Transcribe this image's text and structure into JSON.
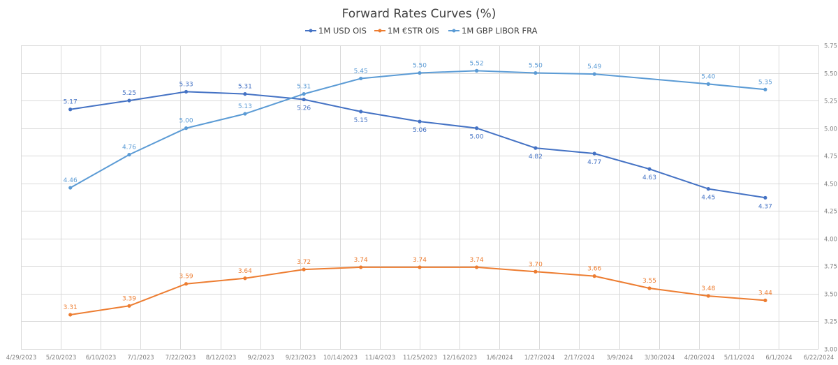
{
  "chart_data": {
    "type": "line",
    "title": "Forward Rates Curves (%)",
    "xlabel": "",
    "ylabel": "",
    "ylim": [
      3.0,
      5.75
    ],
    "y_ticks": [
      "3.00",
      "3.25",
      "3.50",
      "3.75",
      "4.00",
      "4.25",
      "4.50",
      "4.75",
      "5.00",
      "5.25",
      "5.50",
      "5.75"
    ],
    "y_axis_position": "right",
    "x_ticks": [
      "4/29/2023",
      "5/20/2023",
      "6/10/2023",
      "7/1/2023",
      "7/22/2023",
      "8/12/2023",
      "9/2/2023",
      "9/23/2023",
      "10/14/2023",
      "11/4/2023",
      "11/25/2023",
      "12/16/2023",
      "1/6/2024",
      "1/27/2024",
      "2/17/2024",
      "3/9/2024",
      "3/30/2024",
      "4/20/2024",
      "5/11/2024",
      "6/1/2024",
      "6/22/2024"
    ],
    "x": [
      "5/25/2023",
      "6/25/2023",
      "7/25/2023",
      "8/25/2023",
      "9/25/2023",
      "10/25/2023",
      "11/25/2023",
      "12/25/2023",
      "1/25/2024",
      "2/25/2024",
      "3/25/2024",
      "4/25/2024",
      "5/25/2024"
    ],
    "grid": true,
    "legend_position": "top",
    "series": [
      {
        "name": "1M USD OIS",
        "color": "#4472c4",
        "values": [
          5.17,
          5.25,
          5.33,
          5.31,
          5.26,
          5.15,
          5.06,
          5.0,
          4.82,
          4.77,
          4.63,
          4.45,
          4.37
        ],
        "labels": [
          "5.17",
          "5.25",
          "5.33",
          "5.31",
          "5.26",
          "5.15",
          "5.06",
          "5.00",
          "4.82",
          "4.77",
          "4.63",
          "4.45",
          "4.37"
        ],
        "label_side": [
          "above",
          "above",
          "above",
          "above",
          "below",
          "below",
          "below",
          "below",
          "below",
          "below",
          "below",
          "below",
          "below"
        ]
      },
      {
        "name": "1M €STR OIS",
        "color": "#ed7d31",
        "values": [
          3.31,
          3.39,
          3.59,
          3.64,
          3.72,
          3.74,
          3.74,
          3.74,
          3.7,
          3.66,
          3.55,
          3.48,
          3.44
        ],
        "labels": [
          "3.31",
          "3.39",
          "3.59",
          "3.64",
          "3.72",
          "3.74",
          "3.74",
          "3.74",
          "3.70",
          "3.66",
          "3.55",
          "3.48",
          "3.44"
        ],
        "label_side": [
          "above",
          "above",
          "above",
          "above",
          "above",
          "above",
          "above",
          "above",
          "above",
          "above",
          "above",
          "above",
          "above"
        ]
      },
      {
        "name": "1M GBP LIBOR FRA",
        "color": "#5b9bd5",
        "values": [
          4.46,
          4.76,
          5.0,
          5.13,
          5.31,
          5.45,
          5.5,
          5.52,
          5.5,
          5.49,
          null,
          5.4,
          5.35
        ],
        "labels": [
          "4.46",
          "4.76",
          "5.00",
          "5.13",
          "5.31",
          "5.45",
          "5.50",
          "5.52",
          "5.50",
          "5.49",
          null,
          "5.40",
          "5.35"
        ],
        "label_side": [
          "above",
          "above",
          "above",
          "above",
          "above",
          "above",
          "above",
          "above",
          "above",
          "above",
          "above",
          "above",
          "above"
        ]
      }
    ]
  }
}
